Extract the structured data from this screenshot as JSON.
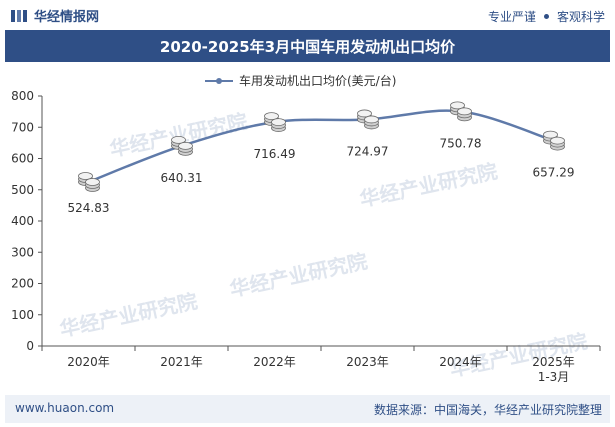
{
  "header": {
    "brand": "华经情报网",
    "tag1": "专业严谨",
    "tag2": "客观科学"
  },
  "footer": {
    "website": "www.huaon.com",
    "source": "数据来源：中国海关，华经产业研究院整理"
  },
  "watermark": "华经产业研究院",
  "colors": {
    "accent": "#2f4f86",
    "line": "#5f7aa9",
    "title_bg": "#2f4f86"
  },
  "chart_data": {
    "type": "line",
    "title": "2020-2025年3月中国车用发动机出口均价",
    "legend": "车用发动机出口均价(美元/台)",
    "categories": [
      "2020年",
      "2021年",
      "2022年",
      "2023年",
      "2024年",
      "2025年\n1-3月"
    ],
    "values": [
      524.83,
      640.31,
      716.49,
      724.97,
      750.78,
      657.29
    ],
    "value_labels": [
      "524.83",
      "640.31",
      "716.49",
      "724.97",
      "750.78",
      "657.29"
    ],
    "yticks": [
      0,
      100,
      200,
      300,
      400,
      500,
      600,
      700,
      800
    ],
    "ylim": [
      0,
      800
    ],
    "xlabel": "",
    "ylabel": ""
  }
}
